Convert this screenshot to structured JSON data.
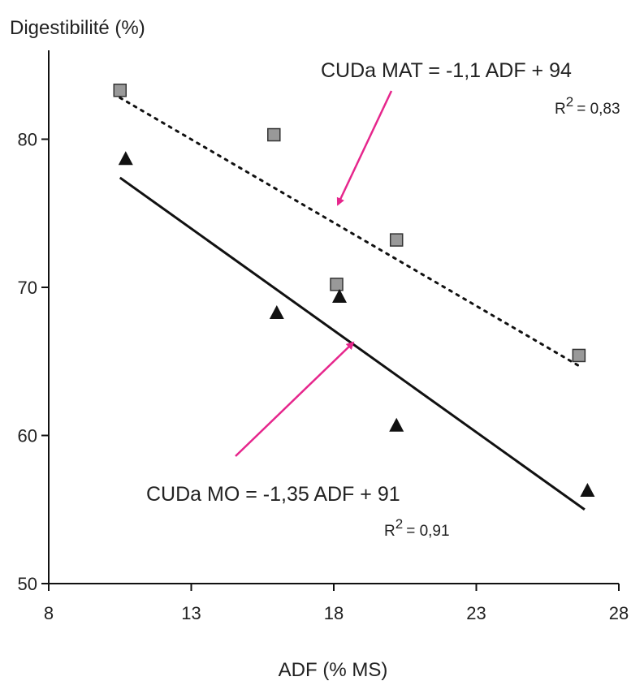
{
  "chart_data": {
    "type": "scatter",
    "ylabel": "Digestibilité (%)",
    "xlabel": "ADF (% MS)",
    "xlim": [
      8,
      28
    ],
    "ylim": [
      50,
      86
    ],
    "x_ticks": [
      8,
      13,
      18,
      23,
      28
    ],
    "y_ticks": [
      50,
      60,
      70,
      80
    ],
    "grid": false,
    "legend": "none",
    "series": [
      {
        "marker": "square",
        "color": "#999999",
        "points": [
          [
            10.5,
            83.3
          ],
          [
            15.9,
            80.3
          ],
          [
            18.1,
            70.2
          ],
          [
            20.2,
            73.2
          ],
          [
            26.6,
            65.4
          ]
        ],
        "fit": {
          "style": "dotted",
          "x": [
            10.5,
            26.6
          ],
          "y": [
            82.8,
            64.7
          ]
        },
        "equation": "CUDa MAT = -1,1 ADF + 94",
        "r2_prefix": "R",
        "r2_exp": "2",
        "r2_value": "= 0,83"
      },
      {
        "marker": "triangle",
        "color": "#111111",
        "points": [
          [
            10.7,
            78.7
          ],
          [
            16.0,
            68.3
          ],
          [
            18.2,
            69.4
          ],
          [
            20.2,
            60.7
          ],
          [
            26.9,
            56.3
          ]
        ],
        "fit": {
          "style": "solid",
          "x": [
            10.5,
            26.8
          ],
          "y": [
            77.4,
            55.0
          ]
        },
        "equation": "CUDa MO = -1,35 ADF + 91",
        "r2_prefix": "R",
        "r2_exp": "2",
        "r2_value": "= 0,91"
      }
    ],
    "arrow_color": "#e6268c"
  }
}
